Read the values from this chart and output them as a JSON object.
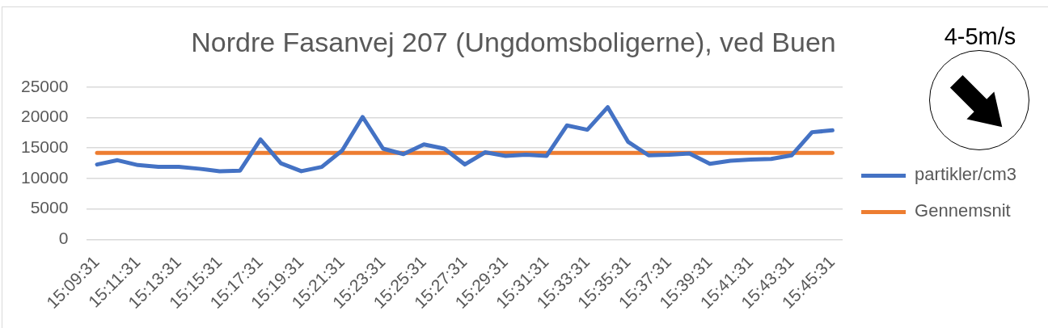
{
  "chart_data": {
    "type": "line",
    "title": "Nordre Fasanvej 207 (Ungdomsboligerne), ved Buen",
    "categories": [
      "15:09:31",
      null,
      "15:11:31",
      null,
      "15:13:31",
      null,
      "15:15:31",
      null,
      "15:17:31",
      null,
      "15:19:31",
      null,
      "15:21:31",
      null,
      "15:23:31",
      null,
      "15:25:31",
      null,
      "15:27:31",
      null,
      "15:29:31",
      null,
      "15:31:31",
      null,
      "15:33:31",
      null,
      "15:35:31",
      null,
      "15:37:31",
      null,
      "15:39:31",
      null,
      "15:41:31",
      null,
      "15:43:31",
      null,
      "15:45:31"
    ],
    "series": [
      {
        "name": "partikler/cm3",
        "color": "#4472c4",
        "values": [
          12300,
          13000,
          12200,
          11900,
          11900,
          11600,
          11200,
          11300,
          16400,
          12500,
          11200,
          11900,
          14600,
          20100,
          14900,
          14000,
          15600,
          14900,
          12300,
          14300,
          13700,
          13900,
          13700,
          18700,
          18000,
          21700,
          16000,
          13800,
          13900,
          14100,
          12400,
          12900,
          13100,
          13200,
          13800,
          17600,
          17900
        ]
      },
      {
        "name": "Gennemsnit",
        "color": "#ed7d31",
        "values": [
          14200,
          14200,
          14200,
          14200,
          14200,
          14200,
          14200,
          14200,
          14200,
          14200,
          14200,
          14200,
          14200,
          14200,
          14200,
          14200,
          14200,
          14200,
          14200,
          14200,
          14200,
          14200,
          14200,
          14200,
          14200,
          14200,
          14200,
          14200,
          14200,
          14200,
          14200,
          14200,
          14200,
          14200,
          14200,
          14200,
          14200
        ]
      }
    ],
    "ylim": [
      0,
      25000
    ],
    "yticks": [
      0,
      5000,
      10000,
      15000,
      20000,
      25000
    ],
    "grid": "y",
    "legend": "right",
    "marker": "none",
    "line_style": "solid",
    "annotations": [
      "4-5m/s"
    ]
  }
}
